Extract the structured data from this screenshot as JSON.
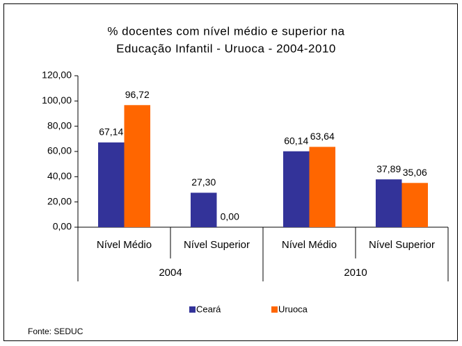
{
  "chart_data": {
    "type": "bar",
    "title": [
      "% docentes com nível médio e superior na",
      "Educação Infantil - Uruoca - 2004-2010"
    ],
    "categories": [
      "Nível Médio",
      "Nível Superior",
      "Nível Médio",
      "Nível Superior"
    ],
    "groups": [
      "2004",
      "2010"
    ],
    "series": [
      {
        "name": "Ceará",
        "color": "#333399",
        "values": [
          67.14,
          27.3,
          60.14,
          37.89
        ],
        "value_labels": [
          "67,14",
          "27,30",
          "60,14",
          "37,89"
        ]
      },
      {
        "name": "Uruoca",
        "color": "#ff6600",
        "values": [
          96.72,
          0.0,
          63.64,
          35.06
        ],
        "value_labels": [
          "96,72",
          "0,00",
          "63,64",
          "35,06"
        ]
      }
    ],
    "ylim": [
      0,
      120
    ],
    "yticks": [
      {
        "value": 0,
        "label": "0,00"
      },
      {
        "value": 20,
        "label": "20,00"
      },
      {
        "value": 40,
        "label": "40,00"
      },
      {
        "value": 60,
        "label": "60,00"
      },
      {
        "value": 80,
        "label": "80,00"
      },
      {
        "value": 100,
        "label": "100,00"
      },
      {
        "value": 120,
        "label": "120,00"
      }
    ],
    "legend": "bottom",
    "source": "Fonte: SEDUC"
  }
}
